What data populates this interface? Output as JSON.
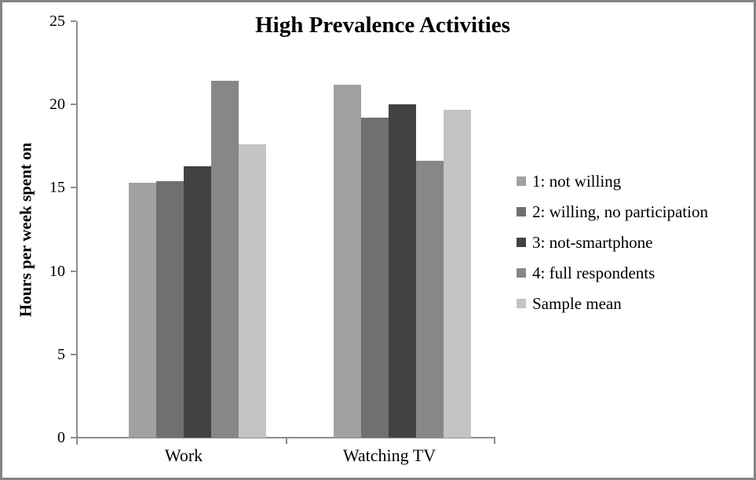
{
  "chart_data": {
    "type": "bar",
    "title": "High Prevalence Activities",
    "xlabel": "",
    "ylabel": "Hours per week spent on",
    "categories": [
      "Work",
      "Watching TV"
    ],
    "series": [
      {
        "name": "1: not willing",
        "color": "#a1a1a1",
        "values": [
          15.3,
          21.2
        ]
      },
      {
        "name": "2: willing, no participation",
        "color": "#707070",
        "values": [
          15.4,
          19.2
        ]
      },
      {
        "name": "3: not-smartphone",
        "color": "#424242",
        "values": [
          16.3,
          20.0
        ]
      },
      {
        "name": "4: full respondents",
        "color": "#878787",
        "values": [
          21.4,
          16.6
        ]
      },
      {
        "name": "Sample mean",
        "color": "#c4c4c4",
        "values": [
          17.6,
          19.7
        ]
      }
    ],
    "ylim": [
      0,
      25
    ],
    "yticks": [
      0,
      5,
      10,
      15,
      20,
      25
    ],
    "grid": false,
    "legend_position": "right",
    "axis_color": "#8e8e8e",
    "text_color": "#000000",
    "frame_border_color": "#848484",
    "background": "#ffffff"
  }
}
